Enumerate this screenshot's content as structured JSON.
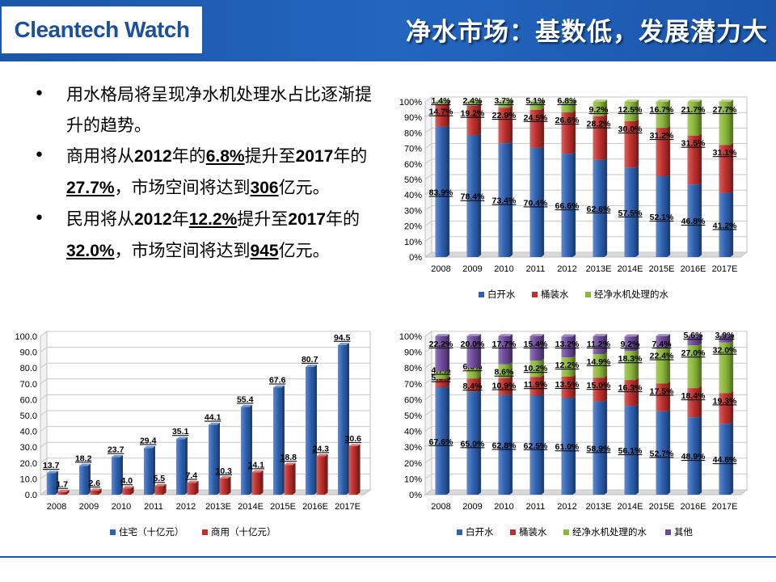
{
  "header": {
    "logo": "Cleantech Watch",
    "title": "净水市场：基数低，发展潜力大"
  },
  "bullets": [
    {
      "parts": [
        {
          "t": "用水格局将呈现净水机处理水占比逐渐提升的趋势。",
          "s": "plain"
        }
      ]
    },
    {
      "parts": [
        {
          "t": "商用将从",
          "s": "plain"
        },
        {
          "t": "2012",
          "s": "bold"
        },
        {
          "t": "年的",
          "s": "plain"
        },
        {
          "t": "6.8%",
          "s": "u"
        },
        {
          "t": "提升至",
          "s": "plain"
        },
        {
          "t": "2017",
          "s": "bold"
        },
        {
          "t": "年的",
          "s": "plain"
        },
        {
          "t": "27.7%",
          "s": "u"
        },
        {
          "t": "，市场空间将达到",
          "s": "plain"
        },
        {
          "t": "306",
          "s": "u"
        },
        {
          "t": "亿元。",
          "s": "plain"
        }
      ]
    },
    {
      "parts": [
        {
          "t": "民用将从",
          "s": "plain"
        },
        {
          "t": "2012",
          "s": "bold"
        },
        {
          "t": "年",
          "s": "plain"
        },
        {
          "t": "12.2%",
          "s": "u"
        },
        {
          "t": "提升至",
          "s": "plain"
        },
        {
          "t": "2017",
          "s": "bold"
        },
        {
          "t": "年的",
          "s": "plain"
        },
        {
          "t": "32.0%",
          "s": "u"
        },
        {
          "t": "，市场空间将达到",
          "s": "plain"
        },
        {
          "t": "945",
          "s": "u"
        },
        {
          "t": "亿元。",
          "s": "plain"
        }
      ]
    }
  ],
  "colors": {
    "blue": "#2f62b4",
    "red": "#c0302d",
    "green": "#8cb83a",
    "purple": "#6e4a9c"
  },
  "chart_data": [
    {
      "id": "commercial-share",
      "type": "bar",
      "stacked": true,
      "categories": [
        "2008",
        "2009",
        "2010",
        "2011",
        "2012",
        "2013E",
        "2014E",
        "2015E",
        "2016E",
        "2017E"
      ],
      "ylim": [
        0,
        100
      ],
      "ytick_labels": [
        "0%",
        "10%",
        "20%",
        "30%",
        "40%",
        "50%",
        "60%",
        "70%",
        "80%",
        "90%",
        "100%"
      ],
      "series": [
        {
          "name": "白开水",
          "color": "#2f62b4",
          "values": [
            83.9,
            78.4,
            73.4,
            70.4,
            66.6,
            62.6,
            57.5,
            52.1,
            46.8,
            41.2
          ],
          "labels": [
            "83.9%",
            "78.4%",
            "73.4%",
            "70.4%",
            "66.6%",
            "62.6%",
            "57.5%",
            "52.1%",
            "46.8%",
            "41.2%"
          ]
        },
        {
          "name": "桶装水",
          "color": "#c0302d",
          "values": [
            14.7,
            19.2,
            22.9,
            24.5,
            26.6,
            28.2,
            30.0,
            31.2,
            31.5,
            31.1
          ],
          "labels": [
            "14.7%",
            "19.2%",
            "22.9%",
            "24.5%",
            "26.6%",
            "28.2%",
            "30.0%",
            "31.2%",
            "31.5%",
            "31.1%"
          ]
        },
        {
          "name": "经净水机处理的水",
          "color": "#8cb83a",
          "values": [
            1.4,
            2.4,
            3.7,
            5.1,
            6.8,
            9.2,
            12.5,
            16.7,
            21.7,
            27.7
          ],
          "labels": [
            "1.4%",
            "2.4%",
            "3.7%",
            "5.1%",
            "6.8%",
            "9.2%",
            "12.5%",
            "16.7%",
            "21.7%",
            "27.7%"
          ]
        }
      ],
      "legend": "bottom"
    },
    {
      "id": "market-size",
      "type": "bar",
      "stacked": false,
      "categories": [
        "2008",
        "2009",
        "2010",
        "2011",
        "2012",
        "2013E",
        "2014E",
        "2015E",
        "2016E",
        "2017E"
      ],
      "ylim": [
        0,
        100
      ],
      "ytick_labels": [
        "0.0",
        "10.0",
        "20.0",
        "30.0",
        "40.0",
        "50.0",
        "60.0",
        "70.0",
        "80.0",
        "90.0",
        "100.0"
      ],
      "series": [
        {
          "name": "住宅（十亿元）",
          "color": "#2f62b4",
          "values": [
            13.7,
            18.2,
            23.7,
            29.4,
            35.1,
            44.1,
            55.4,
            67.6,
            80.7,
            94.5
          ],
          "labels": [
            "13.7",
            "18.2",
            "23.7",
            "29.4",
            "35.1",
            "44.1",
            "55.4",
            "67.6",
            "80.7",
            "94.5"
          ]
        },
        {
          "name": "商用（十亿元）",
          "color": "#c0302d",
          "values": [
            1.7,
            2.6,
            4.0,
            5.5,
            7.4,
            10.3,
            14.1,
            18.8,
            24.3,
            30.6
          ],
          "labels": [
            "1.7",
            "2.6",
            "4.0",
            "5.5",
            "7.4",
            "10.3",
            "14.1",
            "18.8",
            "24.3",
            "30.6"
          ]
        }
      ],
      "legend": "bottom"
    },
    {
      "id": "residential-share",
      "type": "bar",
      "stacked": true,
      "categories": [
        "2008",
        "2009",
        "2010",
        "2011",
        "2012",
        "2013E",
        "2014E",
        "2015E",
        "2016E",
        "2017E"
      ],
      "ylim": [
        0,
        100
      ],
      "ytick_labels": [
        "0%",
        "10%",
        "20%",
        "30%",
        "40%",
        "50%",
        "60%",
        "70%",
        "80%",
        "90%",
        "100%"
      ],
      "series": [
        {
          "name": "白开水",
          "color": "#2f62b4",
          "values": [
            67.6,
            65.0,
            62.8,
            62.5,
            61.0,
            58.9,
            56.1,
            52.7,
            48.9,
            44.8
          ],
          "labels": [
            "67.6%",
            "65.0%",
            "62.8%",
            "62.5%",
            "61.0%",
            "58.9%",
            "56.1%",
            "52.7%",
            "48.9%",
            "44.8%"
          ]
        },
        {
          "name": "桶装水",
          "color": "#c0302d",
          "values": [
            5.5,
            8.4,
            10.9,
            11.9,
            13.5,
            15.0,
            16.3,
            17.5,
            18.4,
            19.3
          ],
          "labels": [
            "5.5%",
            "8.4%",
            "10.9%",
            "11.9%",
            "13.5%",
            "15.0%",
            "16.3%",
            "17.5%",
            "18.4%",
            "19.3%"
          ]
        },
        {
          "name": "经净水机处理的水",
          "color": "#8cb83a",
          "values": [
            4.7,
            6.6,
            8.6,
            10.2,
            12.2,
            14.9,
            18.3,
            22.4,
            27.0,
            32.0
          ],
          "labels": [
            "4.7%",
            "6.6%",
            "8.6%",
            "10.2%",
            "12.2%",
            "14.9%",
            "18.3%",
            "22.4%",
            "27.0%",
            "32.0%"
          ]
        },
        {
          "name": "其他",
          "color": "#6e4a9c",
          "values": [
            22.2,
            20.0,
            17.7,
            15.4,
            13.2,
            11.2,
            9.2,
            7.4,
            5.6,
            3.9
          ],
          "labels": [
            "22.2%",
            "20.0%",
            "17.7%",
            "15.4%",
            "13.2%",
            "11.2%",
            "9.2%",
            "7.4%",
            "5.6%",
            "3.9%"
          ]
        }
      ],
      "legend": "bottom"
    }
  ]
}
